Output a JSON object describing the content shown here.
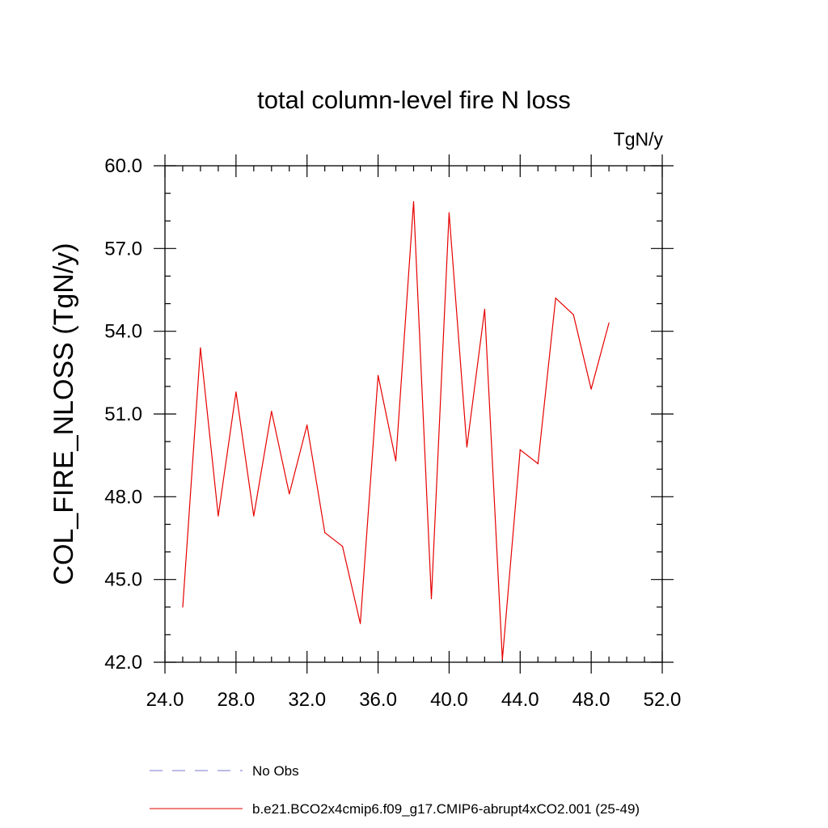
{
  "chart_data": {
    "type": "line",
    "title": "total column-level fire N loss",
    "units_label": "TgN/y",
    "xlabel": "",
    "ylabel": "COL_FIRE_NLOSS  (TgN/y)",
    "xlim": [
      24,
      52
    ],
    "ylim": [
      42,
      60
    ],
    "x_ticks": [
      24,
      28,
      32,
      36,
      40,
      44,
      48,
      52
    ],
    "x_tick_labels": [
      "24.0",
      "28.0",
      "32.0",
      "36.0",
      "40.0",
      "44.0",
      "48.0",
      "52.0"
    ],
    "y_ticks": [
      42,
      45,
      48,
      51,
      54,
      57,
      60
    ],
    "y_tick_labels": [
      "42.0",
      "45.0",
      "48.0",
      "51.0",
      "54.0",
      "57.0",
      "60.0"
    ],
    "x_minor_step": 1,
    "y_minor_step": 1,
    "grid": false,
    "series": [
      {
        "name": "b.e21.BCO2x4cmip6.f09_g17.CMIP6-abrupt4xCO2.001 (25-49)",
        "color": "#e60000",
        "style": "solid",
        "x": [
          25,
          26,
          27,
          28,
          29,
          30,
          31,
          32,
          33,
          34,
          35,
          36,
          37,
          38,
          39,
          40,
          41,
          42,
          43,
          44,
          45,
          46,
          47,
          48,
          49
        ],
        "y": [
          44.0,
          53.4,
          47.3,
          51.8,
          47.3,
          51.1,
          48.1,
          50.6,
          46.7,
          46.2,
          43.4,
          52.4,
          49.3,
          58.7,
          44.3,
          58.3,
          49.8,
          54.8,
          42.1,
          49.7,
          49.2,
          55.2,
          54.6,
          51.9,
          54.3
        ]
      }
    ],
    "legend": [
      {
        "label": "No Obs",
        "color": "#7777cc",
        "style": "dashed"
      },
      {
        "label": "b.e21.BCO2x4cmip6.f09_g17.CMIP6-abrupt4xCO2.001 (25-49)",
        "color": "#e60000",
        "style": "solid"
      }
    ],
    "legend_position": "bottom"
  }
}
